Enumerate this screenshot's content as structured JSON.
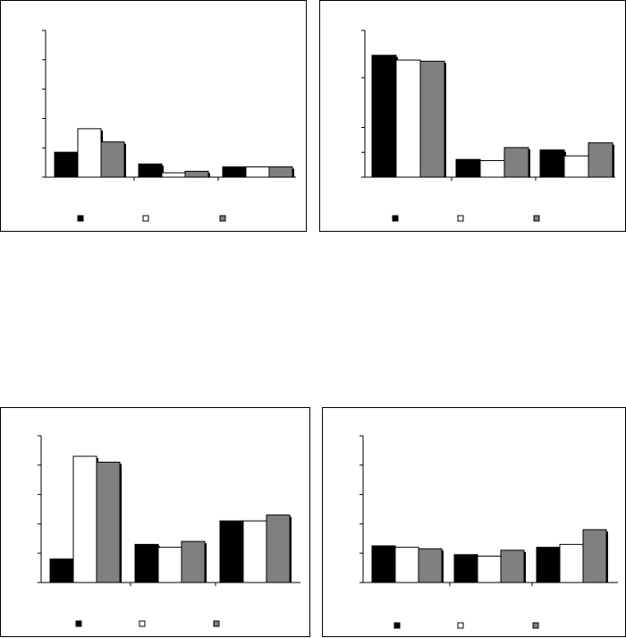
{
  "legend_colors": [
    "#000000",
    "#ffffff",
    "#808080"
  ],
  "chart_data": [
    {
      "type": "bar",
      "categories": [
        "",
        "",
        ""
      ],
      "series": [
        {
          "color": "#000000",
          "values": [
            1.7,
            0.9,
            0.7
          ]
        },
        {
          "color": "#ffffff",
          "values": [
            3.3,
            0.3,
            0.7
          ]
        },
        {
          "color": "#808080",
          "values": [
            2.4,
            0.4,
            0.7
          ]
        }
      ],
      "ylim": [
        0,
        10
      ],
      "yticks": [
        0,
        2,
        4,
        6,
        8,
        10
      ],
      "legend": "bottom",
      "grid": false
    },
    {
      "type": "bar",
      "categories": [
        "",
        "",
        ""
      ],
      "series": [
        {
          "color": "#000000",
          "values": [
            10.3,
            1.5,
            2.3
          ]
        },
        {
          "color": "#ffffff",
          "values": [
            9.9,
            1.4,
            1.8
          ]
        },
        {
          "color": "#808080",
          "values": [
            9.8,
            2.5,
            2.9
          ]
        }
      ],
      "ylim": [
        0,
        12.4
      ],
      "yticks": [
        0,
        2.1,
        4.2,
        8.4,
        12.4
      ],
      "legend": "bottom",
      "grid": false
    },
    {
      "type": "bar",
      "categories": [
        "",
        "",
        ""
      ],
      "series": [
        {
          "color": "#000000",
          "values": [
            1.6,
            2.6,
            4.2
          ]
        },
        {
          "color": "#ffffff",
          "values": [
            8.6,
            2.4,
            4.2
          ]
        },
        {
          "color": "#808080",
          "values": [
            8.2,
            2.8,
            4.6
          ]
        }
      ],
      "ylim": [
        0,
        10
      ],
      "yticks": [
        0,
        2,
        4,
        6,
        8,
        10
      ],
      "legend": "bottom",
      "grid": false
    },
    {
      "type": "bar",
      "categories": [
        "",
        "",
        ""
      ],
      "series": [
        {
          "color": "#000000",
          "values": [
            2.5,
            1.9,
            2.4
          ]
        },
        {
          "color": "#ffffff",
          "values": [
            2.4,
            1.8,
            2.6
          ]
        },
        {
          "color": "#808080",
          "values": [
            2.3,
            2.2,
            3.6
          ]
        }
      ],
      "ylim": [
        0,
        10
      ],
      "yticks": [
        0,
        2,
        4,
        6,
        8,
        10
      ],
      "legend": "bottom",
      "grid": false
    }
  ]
}
